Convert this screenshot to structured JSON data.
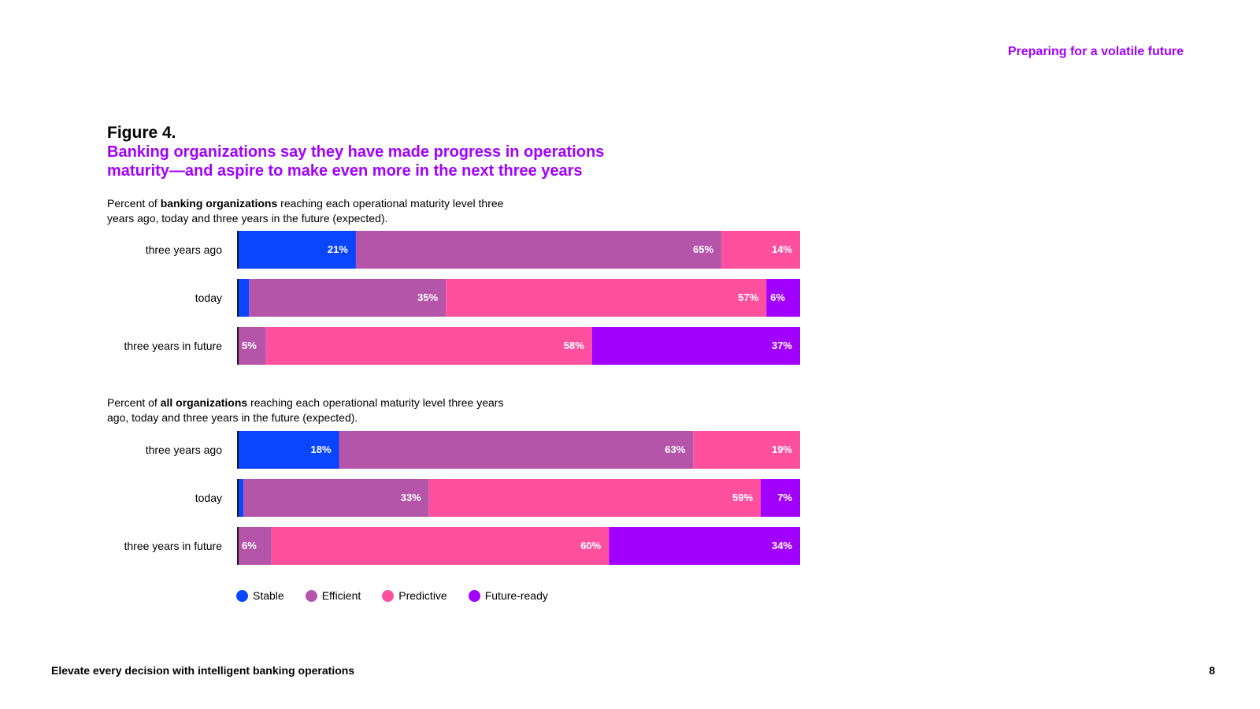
{
  "header": {
    "section": "Preparing for a volatile future"
  },
  "figure": {
    "number": "Figure 4.",
    "title": "Banking organizations say they have made progress in operations maturity—and aspire to make even more in the next three years"
  },
  "chart1_subtitle": {
    "prefix": "Percent of ",
    "bold": "banking organizations",
    "suffix": " reaching each operational maturity level three years ago, today and three years in the future (expected)."
  },
  "chart2_subtitle": {
    "prefix": "Percent of ",
    "bold": "all organizations",
    "suffix": " reaching each operational maturity level three years ago, today and three years in the future (expected)."
  },
  "chart_data": [
    {
      "type": "bar",
      "orientation": "horizontal-stacked-100",
      "categories": [
        "three years ago",
        "today",
        "three years in future"
      ],
      "series": [
        {
          "name": "Stable",
          "color": "#0a46ff",
          "values": [
            21,
            2,
            0
          ],
          "labels": [
            "21%",
            "",
            ""
          ]
        },
        {
          "name": "Efficient",
          "color": "#b455aa",
          "values": [
            65,
            35,
            5
          ],
          "labels": [
            "65%",
            "35%",
            "5%"
          ]
        },
        {
          "name": "Predictive",
          "color": "#ff50a0",
          "values": [
            14,
            57,
            58
          ],
          "labels": [
            "14%",
            "57%",
            "58%"
          ]
        },
        {
          "name": "Future-ready",
          "color": "#a100ff",
          "values": [
            0,
            6,
            37
          ],
          "labels": [
            "",
            "6%",
            "37%"
          ]
        }
      ]
    },
    {
      "type": "bar",
      "orientation": "horizontal-stacked-100",
      "categories": [
        "three years ago",
        "today",
        "three years in future"
      ],
      "series": [
        {
          "name": "Stable",
          "color": "#0a46ff",
          "values": [
            18,
            1,
            0
          ],
          "labels": [
            "18%",
            "",
            ""
          ]
        },
        {
          "name": "Efficient",
          "color": "#b455aa",
          "values": [
            63,
            33,
            6
          ],
          "labels": [
            "63%",
            "33%",
            "6%"
          ]
        },
        {
          "name": "Predictive",
          "color": "#ff50a0",
          "values": [
            19,
            59,
            60
          ],
          "labels": [
            "19%",
            "59%",
            "60%"
          ]
        },
        {
          "name": "Future-ready",
          "color": "#a100ff",
          "values": [
            0,
            7,
            34
          ],
          "labels": [
            "",
            "7%",
            "34%"
          ]
        }
      ]
    }
  ],
  "legend": [
    {
      "label": "Stable",
      "color": "#0a46ff"
    },
    {
      "label": "Efficient",
      "color": "#b455aa"
    },
    {
      "label": "Predictive",
      "color": "#ff50a0"
    },
    {
      "label": "Future-ready",
      "color": "#a100ff"
    }
  ],
  "footer": {
    "title": "Elevate every decision with intelligent banking operations",
    "page_number": "8"
  }
}
